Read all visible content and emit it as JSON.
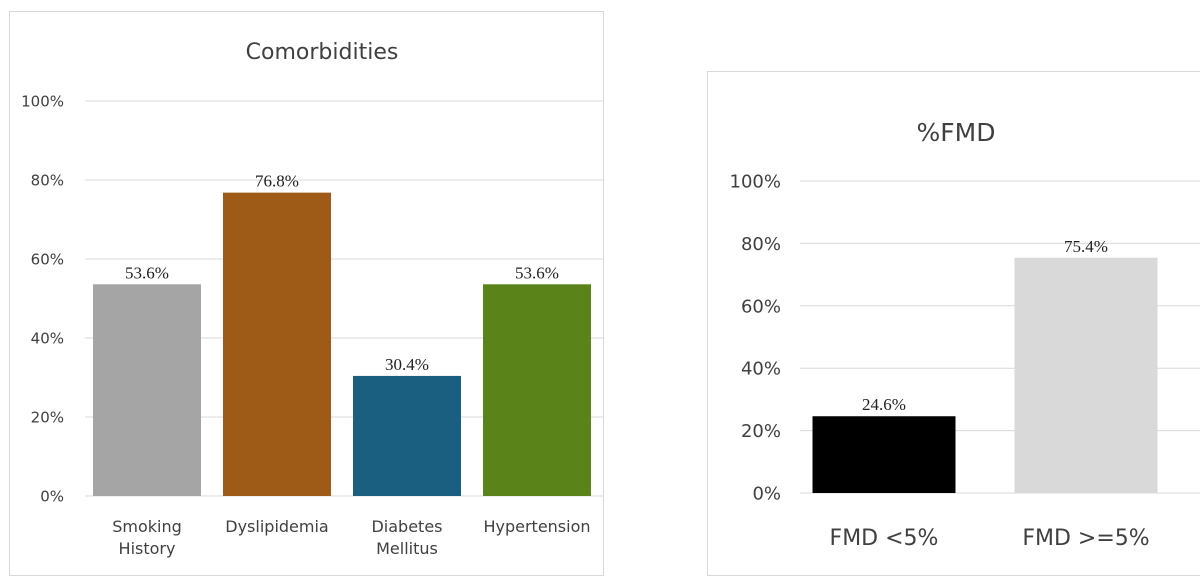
{
  "chart_data": [
    {
      "type": "bar",
      "title": "Comorbidities",
      "categories": [
        [
          "Smoking",
          "History"
        ],
        [
          "Dyslipidemia"
        ],
        [
          "Diabetes",
          "Mellitus"
        ],
        [
          "Hypertension"
        ]
      ],
      "values": [
        53.6,
        76.8,
        30.4,
        53.6
      ],
      "data_labels": [
        "53.6%",
        "76.8%",
        "30.4%",
        "53.6%"
      ],
      "colors": [
        "#a5a5a5",
        "#9e5a17",
        "#1a5f80",
        "#5a8319"
      ],
      "ylim": [
        0,
        100
      ],
      "yticks": [
        0,
        20,
        40,
        60,
        80,
        100
      ],
      "ytick_labels": [
        "0%",
        "20%",
        "40%",
        "60%",
        "80%",
        "100%"
      ],
      "grid": true,
      "legend": false
    },
    {
      "type": "bar",
      "title": "%FMD",
      "categories": [
        [
          "FMD <5%"
        ],
        [
          "FMD >=5%"
        ]
      ],
      "values": [
        24.6,
        75.4
      ],
      "data_labels": [
        "24.6%",
        "75.4%"
      ],
      "colors": [
        "#000000",
        "#d9d9d9"
      ],
      "ylim": [
        0,
        100
      ],
      "yticks": [
        0,
        20,
        40,
        60,
        80,
        100
      ],
      "ytick_labels": [
        "0%",
        "20%",
        "40%",
        "60%",
        "80%",
        "100%"
      ],
      "grid": true,
      "legend": false
    }
  ]
}
